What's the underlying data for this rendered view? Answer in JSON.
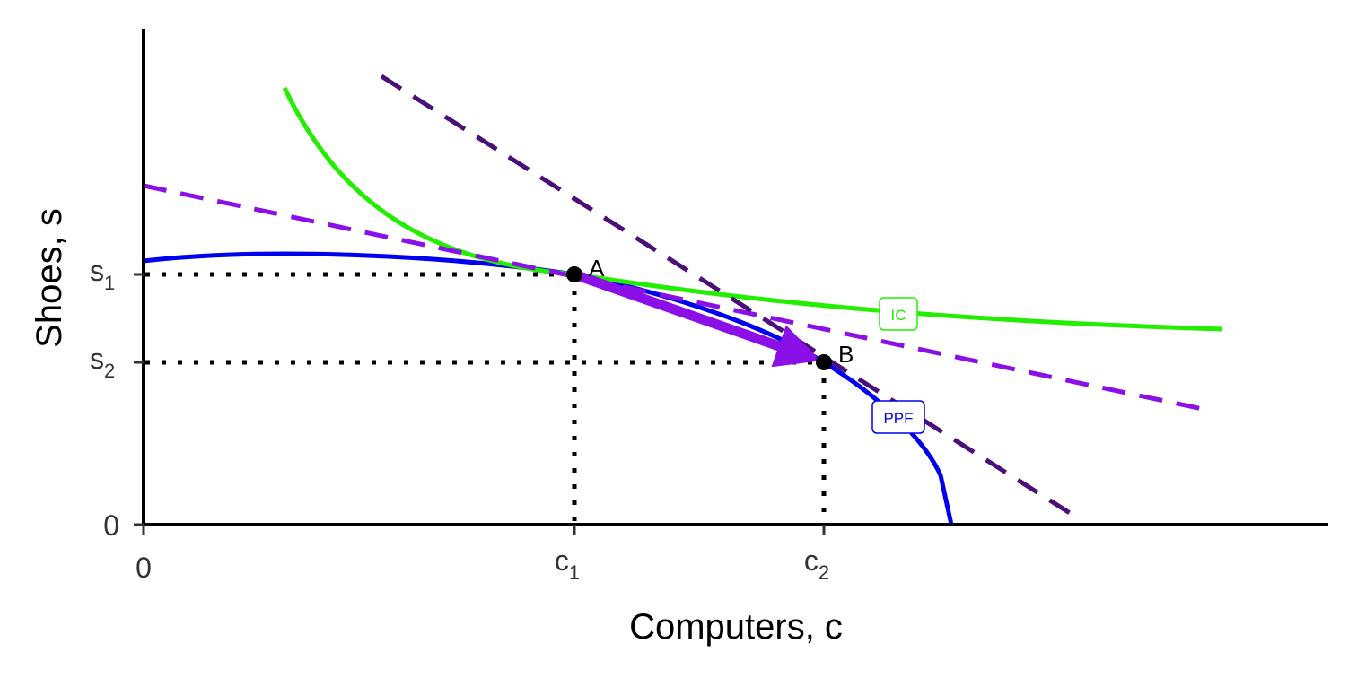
{
  "axes": {
    "x_label": "Computers, c",
    "y_label": "Shoes, s"
  },
  "x_ticks": [
    {
      "main": "0"
    },
    {
      "main": "c",
      "sub": "1"
    },
    {
      "main": "c",
      "sub": "2"
    }
  ],
  "y_ticks": [
    {
      "main": "0"
    },
    {
      "main": "s",
      "sub": "1"
    },
    {
      "main": "s",
      "sub": "2"
    }
  ],
  "points": [
    {
      "label": "A"
    },
    {
      "label": "B"
    }
  ],
  "curves": [
    {
      "label": "IC"
    },
    {
      "label": "PPF"
    }
  ]
}
